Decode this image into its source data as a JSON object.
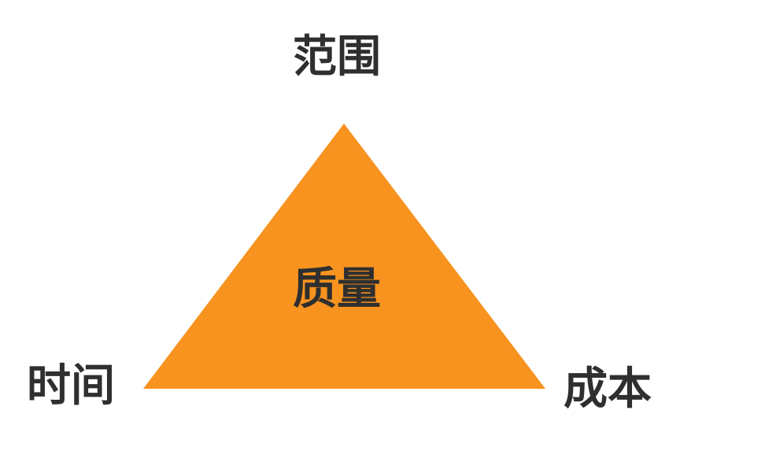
{
  "diagram": {
    "top_label": "范围",
    "left_label": "时间",
    "right_label": "成本",
    "center_label": "质量"
  },
  "colors": {
    "triangle_fill": "#F7931E",
    "text": "#2F2F2F",
    "background": "#FFFFFF"
  }
}
